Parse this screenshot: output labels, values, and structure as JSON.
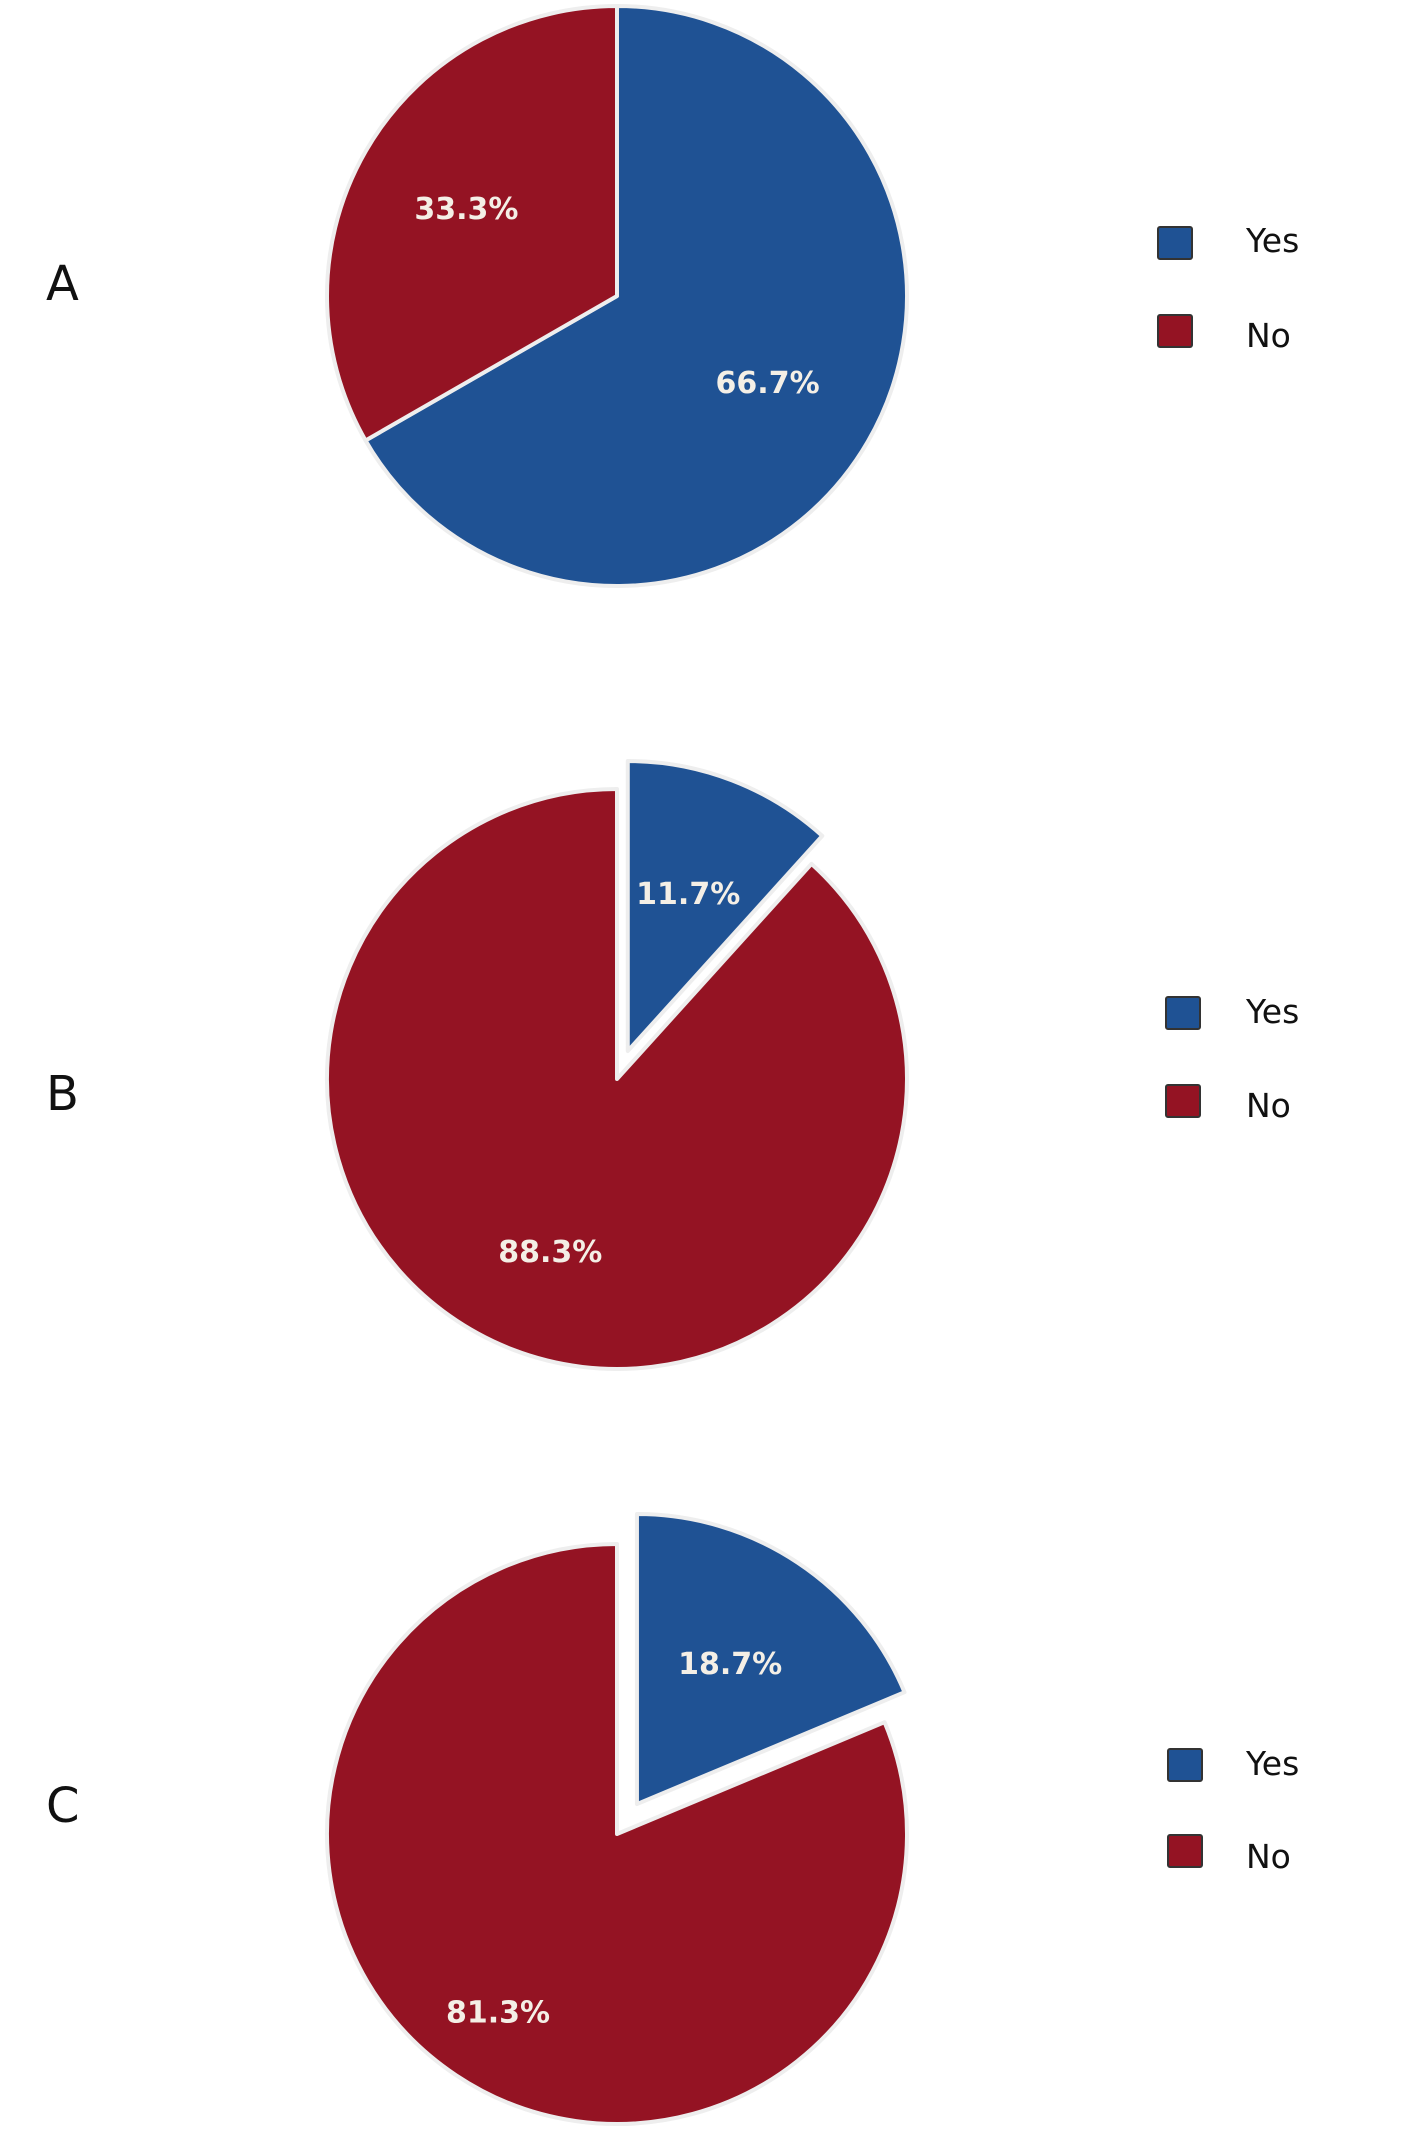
{
  "colors": {
    "yes": "#1f5294",
    "no": "#941323",
    "slice_outline": "#eeeeee",
    "swatch_border": "#333333"
  },
  "chart_data": [
    {
      "type": "pie",
      "panel_label": "A",
      "categories": [
        "Yes",
        "No"
      ],
      "values": [
        66.7,
        33.3
      ],
      "labels": [
        "66.7%",
        "33.3%"
      ],
      "exploded": [
        false,
        false
      ],
      "legend": [
        "Yes",
        "No"
      ],
      "legend_placement": "right",
      "title": ""
    },
    {
      "type": "pie",
      "panel_label": "B",
      "categories": [
        "Yes",
        "No"
      ],
      "values": [
        11.7,
        88.3
      ],
      "labels": [
        "11.7%",
        "88.3%"
      ],
      "exploded": [
        true,
        false
      ],
      "legend": [
        "Yes",
        "No"
      ],
      "legend_placement": "right",
      "title": ""
    },
    {
      "type": "pie",
      "panel_label": "C",
      "categories": [
        "Yes",
        "No"
      ],
      "values": [
        18.7,
        81.3
      ],
      "labels": [
        "18.7%",
        "81.3%"
      ],
      "exploded": [
        true,
        false
      ],
      "legend": [
        "Yes",
        "No"
      ],
      "legend_placement": "right",
      "title": ""
    }
  ]
}
